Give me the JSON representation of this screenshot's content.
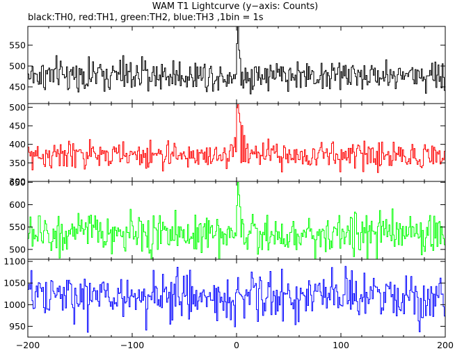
{
  "title": "WAM T1 Lightcurve (y−axis: Counts)",
  "subtitle": "black:TH0, red:TH1, green:TH2, blue:TH3 ,1bin = 1s",
  "chart_data": {
    "type": "line",
    "title": "WAM T1 Lightcurve (y−axis: Counts)",
    "subtitle": "black:TH0, red:TH1, green:TH2, blue:TH3 ,1bin = 1s",
    "xlabel": "",
    "ylabel": "",
    "xlim": [
      -200,
      200
    ],
    "x_ticks": [
      -200,
      -100,
      0,
      100,
      200
    ],
    "x_tick_labels": [
      "−200",
      "−100",
      "0",
      "100",
      "200"
    ],
    "x_step": 1,
    "grid": false,
    "legend": "none",
    "series": [
      {
        "name": "TH0",
        "color": "#000000",
        "ylim": [
          410,
          595
        ],
        "y_ticks": [
          450,
          500,
          550
        ],
        "y_tick_labels": [
          "450",
          "500",
          "550"
        ],
        "baseline": 478,
        "noise": 22,
        "peak_times": [
          0,
          1,
          2,
          3
        ],
        "peak_values": [
          560,
          595,
          540,
          515
        ],
        "values_summary": "1 s binned counts fluctuating about 478; sharp spike to ~595 at t≈0"
      },
      {
        "name": "TH1",
        "color": "#ff0000",
        "ylim": [
          300,
          510
        ],
        "y_ticks": [
          300,
          350,
          400,
          450,
          500
        ],
        "y_tick_labels": [
          "300",
          "350",
          "400",
          "450",
          "500"
        ],
        "baseline": 370,
        "noise": 21,
        "peak_times": [
          -5,
          -2,
          0,
          1,
          2,
          3,
          5,
          7,
          10,
          14
        ],
        "peak_values": [
          400,
          420,
          500,
          510,
          480,
          460,
          445,
          420,
          400,
          385
        ],
        "values_summary": "baseline ~370; burst peaking near 505 at t≈0 with slow decay over ~15 s"
      },
      {
        "name": "TH2",
        "color": "#00ff00",
        "ylim": [
          478,
          652
        ],
        "y_ticks": [
          500,
          550,
          600,
          650
        ],
        "y_tick_labels": [
          "500",
          "550",
          "600",
          "650"
        ],
        "baseline": 535,
        "noise": 26,
        "peak_times": [
          0,
          1,
          2,
          3,
          5
        ],
        "peak_values": [
          600,
          650,
          620,
          590,
          570
        ],
        "values_summary": "baseline ~535; spike to ~650 at t≈0"
      },
      {
        "name": "TH3",
        "color": "#0000ff",
        "ylim": [
          925,
          1105
        ],
        "y_ticks": [
          950,
          1000,
          1050,
          1100
        ],
        "y_tick_labels": [
          "950",
          "1000",
          "1050",
          "1100"
        ],
        "baseline": 1018,
        "noise": 33,
        "peak_times": [],
        "peak_values": [],
        "values_summary": "baseline ~1018 with large fluctuations; no clear burst"
      }
    ]
  }
}
